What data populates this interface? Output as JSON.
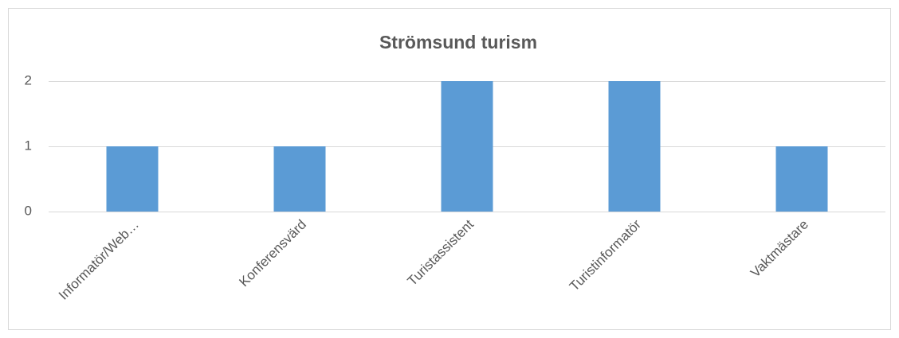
{
  "chart_data": {
    "type": "bar",
    "title": "Strömsund turism",
    "categories": [
      "Informatör/Web…",
      "Konferensvärd",
      "Turistassistent",
      "Turistinformatör",
      "Vaktmästare"
    ],
    "values": [
      1,
      1,
      2,
      2,
      1
    ],
    "color": "#5b9bd5",
    "ylim": [
      0,
      2
    ],
    "yticks": [
      0,
      1,
      2
    ],
    "grid": true
  }
}
